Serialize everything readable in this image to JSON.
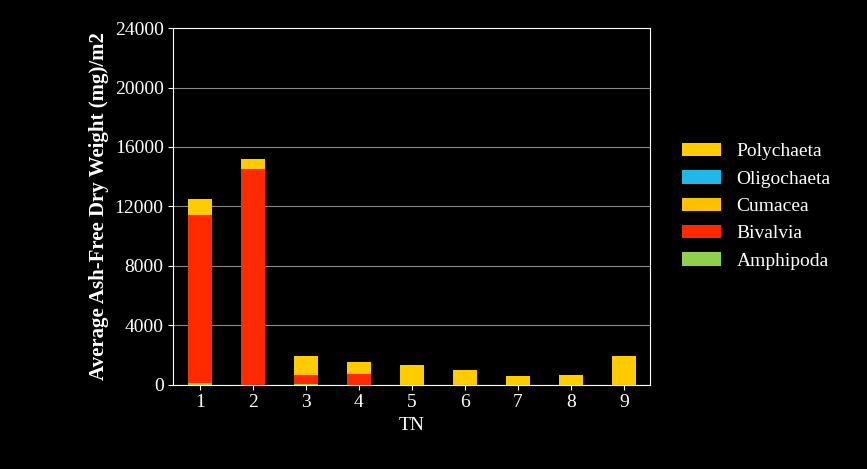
{
  "chart_data": {
    "type": "bar",
    "stacked": true,
    "x_label": "TN",
    "y_label": "Average Ash-Free Dry Weight (mg)/m2",
    "categories": [
      "1",
      "2",
      "3",
      "4",
      "5",
      "6",
      "7",
      "8",
      "9"
    ],
    "series": [
      {
        "name": "Amphipoda",
        "color": "#8fd14f",
        "values": [
          100,
          0,
          50,
          0,
          0,
          0,
          0,
          0,
          0
        ]
      },
      {
        "name": "Bivalvia",
        "color": "#ff2a00",
        "values": [
          11300,
          14500,
          600,
          700,
          0,
          0,
          0,
          0,
          0
        ]
      },
      {
        "name": "Cumacea",
        "color": "#ffc000",
        "values": [
          100,
          50,
          100,
          100,
          50,
          50,
          0,
          0,
          50
        ]
      },
      {
        "name": "Oligochaeta",
        "color": "#1fb8e8",
        "values": [
          0,
          0,
          0,
          0,
          0,
          0,
          0,
          0,
          0
        ]
      },
      {
        "name": "Polychaeta",
        "color": "#ffcc00",
        "values": [
          1000,
          650,
          1150,
          750,
          1250,
          900,
          550,
          650,
          1850
        ]
      }
    ],
    "ylim": [
      0,
      24000
    ],
    "yticks": [
      0,
      4000,
      8000,
      12000,
      16000,
      20000,
      24000
    ],
    "grid": true,
    "legend": "right"
  }
}
